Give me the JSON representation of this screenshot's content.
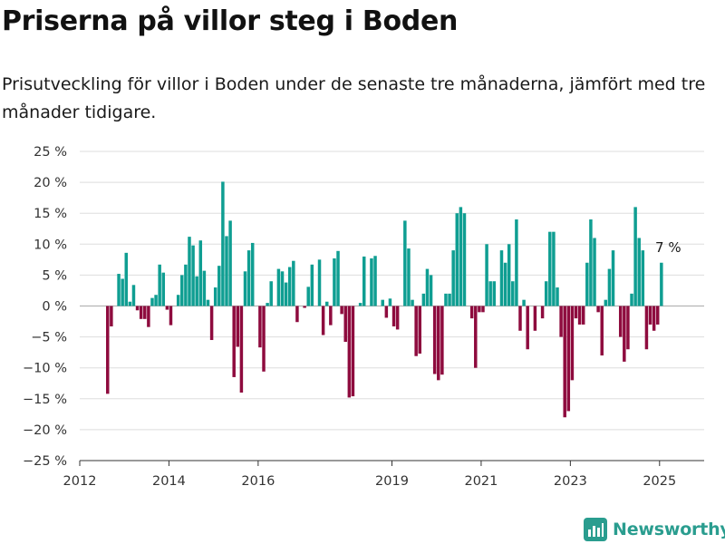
{
  "title": "Priserna på villor steg i Boden",
  "subtitle": "Prisutveckling för villor i Boden under de senaste tre månaderna, jämfört med tre månader tidigare.",
  "colors": {
    "positive": "#0f9e92",
    "negative": "#8e0b3e",
    "grid": "#dddddd",
    "axis": "#333333"
  },
  "brand": {
    "name": "Newsworthy",
    "icon": "chart-logo-icon",
    "color": "#2a9d8f"
  },
  "chart_data": {
    "type": "bar",
    "x_start": "2012-08",
    "x_step": "month",
    "xlim": [
      "2012-01",
      "2026-01"
    ],
    "x_ticks": [
      {
        "value": "2012-01",
        "label": "2012"
      },
      {
        "value": "2014-01",
        "label": "2014"
      },
      {
        "value": "2016-01",
        "label": "2016"
      },
      {
        "value": "2019-01",
        "label": "2019"
      },
      {
        "value": "2021-01",
        "label": "2021"
      },
      {
        "value": "2023-01",
        "label": "2023"
      },
      {
        "value": "2025-01",
        "label": "2025"
      }
    ],
    "ylim": [
      -25,
      25
    ],
    "y_ticks": [
      {
        "value": 25,
        "label": "25 %"
      },
      {
        "value": 20,
        "label": "20 %"
      },
      {
        "value": 15,
        "label": "15 %"
      },
      {
        "value": 10,
        "label": "10 %"
      },
      {
        "value": 5,
        "label": "5 %"
      },
      {
        "value": 0,
        "label": "0 %"
      },
      {
        "value": -5,
        "label": "−5 %"
      },
      {
        "value": -10,
        "label": "−10 %"
      },
      {
        "value": -15,
        "label": "−15 %"
      },
      {
        "value": -20,
        "label": "−20 %"
      },
      {
        "value": -25,
        "label": "−25 %"
      }
    ],
    "grid": true,
    "values": [
      -14.2,
      -3.3,
      0,
      5.2,
      4.4,
      8.6,
      0.7,
      3.4,
      -0.7,
      -2.1,
      -2.1,
      -3.4,
      1.3,
      1.8,
      6.7,
      5.4,
      -0.6,
      -3.1,
      0,
      1.8,
      5.0,
      6.7,
      11.2,
      9.8,
      4.8,
      10.6,
      5.7,
      1.0,
      -5.5,
      3.0,
      6.5,
      20.1,
      11.3,
      13.8,
      -11.5,
      -6.6,
      -14.0,
      5.6,
      9.0,
      10.2,
      0,
      -6.7,
      -10.6,
      0.5,
      4.0,
      0,
      6.0,
      5.6,
      3.8,
      6.3,
      7.3,
      -2.6,
      0,
      -0.3,
      3.1,
      6.7,
      0,
      7.5,
      -4.7,
      0.7,
      -3.1,
      7.7,
      8.9,
      -1.3,
      -5.8,
      -14.8,
      -14.6,
      0,
      0.5,
      8.0,
      0,
      7.7,
      8.1,
      0,
      1.0,
      -1.9,
      1.2,
      -3.3,
      -3.8,
      0,
      13.8,
      9.3,
      1.0,
      -8.1,
      -7.7,
      2.0,
      6.0,
      5.0,
      -11.0,
      -12.0,
      -11.1,
      2.0,
      2.0,
      9.0,
      15.0,
      16.0,
      15.0,
      0,
      -2.0,
      -10.0,
      -1.0,
      -1.0,
      10.0,
      4.0,
      4.0,
      0,
      9.0,
      7.0,
      10.0,
      4.0,
      14.0,
      -4.0,
      1.0,
      -7.0,
      0,
      -4.0,
      0,
      -2.0,
      4.0,
      12.0,
      12.0,
      3.0,
      -5.0,
      -18.0,
      -17.0,
      -12.0,
      -2.0,
      -3.0,
      -3.0,
      7.0,
      14.0,
      11.0,
      -1.0,
      -8.0,
      1.0,
      6.0,
      9.0,
      0,
      -5.0,
      -9.0,
      -7.0,
      2.0,
      16.0,
      11.0,
      9.0,
      -7.0,
      -3.0,
      -4.0,
      -3.0,
      7.0
    ],
    "annotations": [
      {
        "x": "2025-03",
        "y": 7,
        "label": "7 %"
      }
    ]
  }
}
